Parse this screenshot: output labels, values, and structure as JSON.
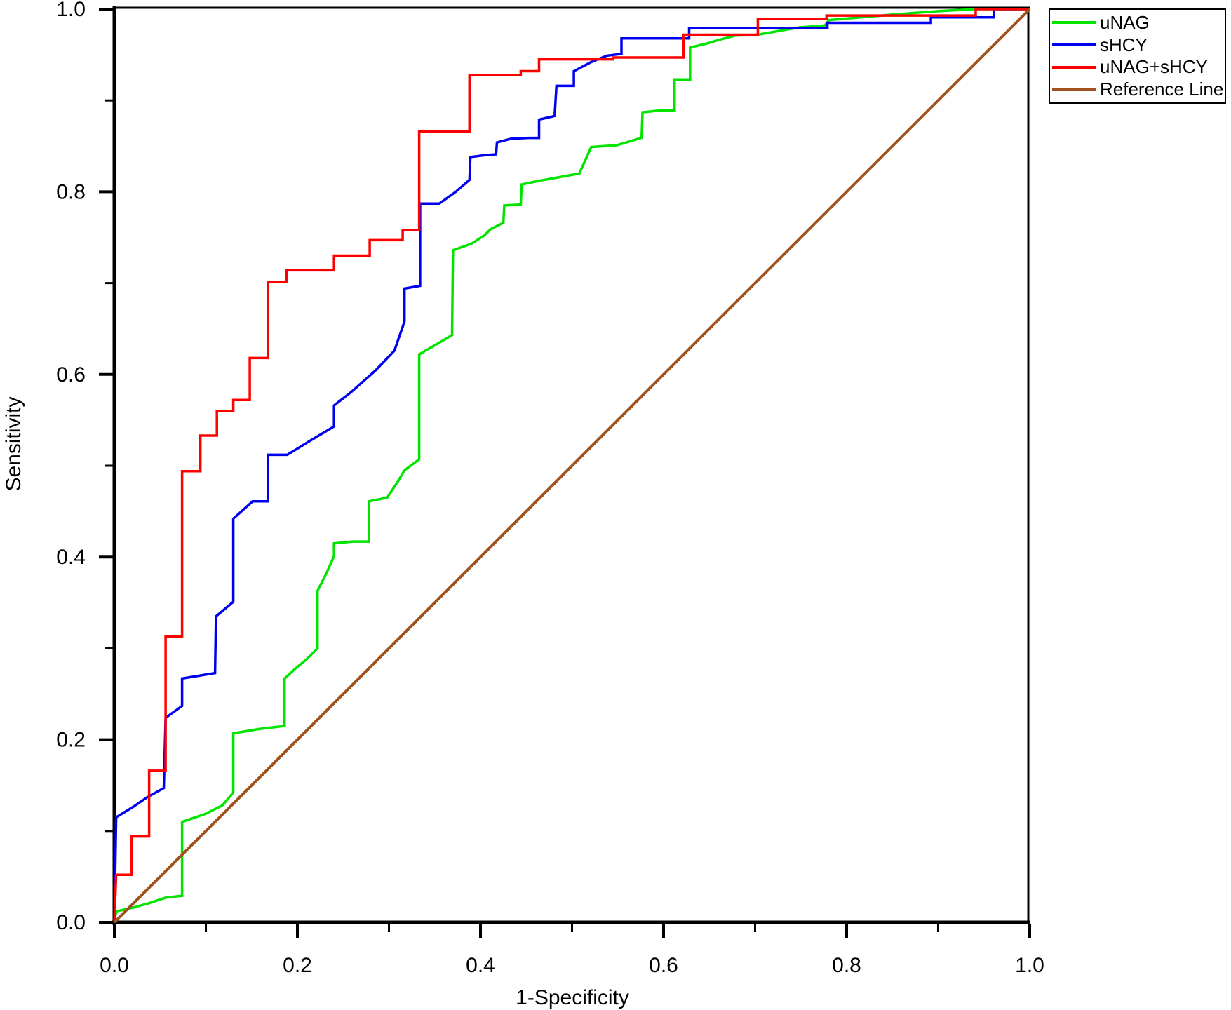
{
  "chart_data": {
    "type": "line",
    "subtype": "roc-curve",
    "title": "",
    "xlabel": "1-Specificity",
    "ylabel": "Sensitivity",
    "xlim": [
      0.0,
      1.0
    ],
    "ylim": [
      0.0,
      1.0
    ],
    "grid": false,
    "legend_position": "outside-top-right",
    "x_major_ticks": {
      "values": [
        0,
        0.2,
        0.4,
        0.6,
        0.8,
        1.0
      ],
      "labels": [
        "0.0",
        "0.2",
        "0.4",
        "0.6",
        "0.8",
        "1.0"
      ]
    },
    "x_minor_ticks": [
      0.1,
      0.3,
      0.5,
      0.7,
      0.9
    ],
    "y_major_ticks": {
      "values": [
        0,
        0.2,
        0.4,
        0.6,
        0.8,
        1.0
      ],
      "labels": [
        "0.0",
        "0.2",
        "0.4",
        "0.6",
        "0.8",
        "1.0"
      ]
    },
    "y_minor_ticks": [
      0.1,
      0.3,
      0.5,
      0.7,
      0.9
    ],
    "series": [
      {
        "name": "uNAG",
        "color": "#00E400",
        "width": 3.5,
        "points": [
          [
            0,
            0
          ],
          [
            0.002,
            0.012
          ],
          [
            0.02,
            0.016
          ],
          [
            0.038,
            0.021
          ],
          [
            0.056,
            0.027
          ],
          [
            0.073,
            0.029
          ],
          [
            0.074,
            0.029
          ],
          [
            0.074,
            0.11
          ],
          [
            0.1,
            0.119
          ],
          [
            0.118,
            0.128
          ],
          [
            0.13,
            0.142
          ],
          [
            0.13,
            0.207
          ],
          [
            0.16,
            0.212
          ],
          [
            0.186,
            0.215
          ],
          [
            0.186,
            0.267
          ],
          [
            0.198,
            0.278
          ],
          [
            0.21,
            0.288
          ],
          [
            0.222,
            0.3
          ],
          [
            0.222,
            0.363
          ],
          [
            0.232,
            0.383
          ],
          [
            0.24,
            0.401
          ],
          [
            0.24,
            0.415
          ],
          [
            0.26,
            0.417
          ],
          [
            0.278,
            0.417
          ],
          [
            0.278,
            0.461
          ],
          [
            0.298,
            0.465
          ],
          [
            0.31,
            0.483
          ],
          [
            0.317,
            0.495
          ],
          [
            0.333,
            0.507
          ],
          [
            0.333,
            0.622
          ],
          [
            0.352,
            0.633
          ],
          [
            0.369,
            0.643
          ],
          [
            0.37,
            0.736
          ],
          [
            0.39,
            0.743
          ],
          [
            0.404,
            0.752
          ],
          [
            0.411,
            0.759
          ],
          [
            0.425,
            0.766
          ],
          [
            0.426,
            0.785
          ],
          [
            0.444,
            0.786
          ],
          [
            0.445,
            0.808
          ],
          [
            0.464,
            0.812
          ],
          [
            0.486,
            0.816
          ],
          [
            0.508,
            0.82
          ],
          [
            0.521,
            0.849
          ],
          [
            0.549,
            0.851
          ],
          [
            0.576,
            0.859
          ],
          [
            0.577,
            0.887
          ],
          [
            0.596,
            0.889
          ],
          [
            0.612,
            0.889
          ],
          [
            0.612,
            0.923
          ],
          [
            0.629,
            0.923
          ],
          [
            0.629,
            0.958
          ],
          [
            0.646,
            0.962
          ],
          [
            0.663,
            0.967
          ],
          [
            0.678,
            0.971
          ],
          [
            0.703,
            0.972
          ],
          [
            0.748,
            0.98
          ],
          [
            0.776,
            0.982
          ],
          [
            0.781,
            0.988
          ],
          [
            0.85,
            0.994
          ],
          [
            0.903,
            0.998
          ],
          [
            0.941,
            1
          ],
          [
            1,
            1
          ]
        ]
      },
      {
        "name": "sHCY",
        "color": "#0000F0",
        "width": 3.5,
        "points": [
          [
            0,
            0
          ],
          [
            0.002,
            0.115
          ],
          [
            0.02,
            0.126
          ],
          [
            0.036,
            0.137
          ],
          [
            0.054,
            0.147
          ],
          [
            0.056,
            0.224
          ],
          [
            0.074,
            0.237
          ],
          [
            0.074,
            0.267
          ],
          [
            0.092,
            0.27
          ],
          [
            0.11,
            0.273
          ],
          [
            0.111,
            0.335
          ],
          [
            0.13,
            0.351
          ],
          [
            0.13,
            0.442
          ],
          [
            0.151,
            0.461
          ],
          [
            0.168,
            0.461
          ],
          [
            0.168,
            0.512
          ],
          [
            0.189,
            0.512
          ],
          [
            0.215,
            0.528
          ],
          [
            0.24,
            0.543
          ],
          [
            0.24,
            0.566
          ],
          [
            0.258,
            0.58
          ],
          [
            0.285,
            0.604
          ],
          [
            0.306,
            0.626
          ],
          [
            0.317,
            0.658
          ],
          [
            0.317,
            0.694
          ],
          [
            0.334,
            0.697
          ],
          [
            0.334,
            0.787
          ],
          [
            0.355,
            0.787
          ],
          [
            0.373,
            0.8
          ],
          [
            0.388,
            0.813
          ],
          [
            0.389,
            0.838
          ],
          [
            0.405,
            0.84
          ],
          [
            0.417,
            0.841
          ],
          [
            0.418,
            0.854
          ],
          [
            0.433,
            0.858
          ],
          [
            0.452,
            0.859
          ],
          [
            0.464,
            0.859
          ],
          [
            0.464,
            0.879
          ],
          [
            0.481,
            0.883
          ],
          [
            0.483,
            0.916
          ],
          [
            0.502,
            0.916
          ],
          [
            0.502,
            0.932
          ],
          [
            0.521,
            0.942
          ],
          [
            0.538,
            0.949
          ],
          [
            0.554,
            0.951
          ],
          [
            0.554,
            0.968
          ],
          [
            0.628,
            0.968
          ],
          [
            0.628,
            0.979
          ],
          [
            0.779,
            0.979
          ],
          [
            0.779,
            0.985
          ],
          [
            0.892,
            0.985
          ],
          [
            0.892,
            0.991
          ],
          [
            0.961,
            0.991
          ],
          [
            0.961,
            1
          ],
          [
            1,
            1
          ]
        ]
      },
      {
        "name": "uNAG+sHCY",
        "color": "#FF0000",
        "width": 3.5,
        "points": [
          [
            0,
            0
          ],
          [
            0.002,
            0.052
          ],
          [
            0.019,
            0.052
          ],
          [
            0.019,
            0.094
          ],
          [
            0.038,
            0.094
          ],
          [
            0.038,
            0.166
          ],
          [
            0.056,
            0.166
          ],
          [
            0.056,
            0.313
          ],
          [
            0.074,
            0.313
          ],
          [
            0.074,
            0.494
          ],
          [
            0.094,
            0.494
          ],
          [
            0.094,
            0.533
          ],
          [
            0.112,
            0.533
          ],
          [
            0.112,
            0.56
          ],
          [
            0.13,
            0.56
          ],
          [
            0.13,
            0.572
          ],
          [
            0.148,
            0.572
          ],
          [
            0.148,
            0.618
          ],
          [
            0.168,
            0.618
          ],
          [
            0.168,
            0.701
          ],
          [
            0.188,
            0.701
          ],
          [
            0.188,
            0.714
          ],
          [
            0.24,
            0.714
          ],
          [
            0.24,
            0.73
          ],
          [
            0.279,
            0.73
          ],
          [
            0.279,
            0.747
          ],
          [
            0.315,
            0.747
          ],
          [
            0.315,
            0.758
          ],
          [
            0.333,
            0.758
          ],
          [
            0.333,
            0.866
          ],
          [
            0.388,
            0.866
          ],
          [
            0.388,
            0.928
          ],
          [
            0.444,
            0.928
          ],
          [
            0.444,
            0.932
          ],
          [
            0.464,
            0.932
          ],
          [
            0.464,
            0.945
          ],
          [
            0.545,
            0.945
          ],
          [
            0.545,
            0.947
          ],
          [
            0.622,
            0.947
          ],
          [
            0.622,
            0.972
          ],
          [
            0.703,
            0.972
          ],
          [
            0.703,
            0.989
          ],
          [
            0.778,
            0.989
          ],
          [
            0.778,
            0.993
          ],
          [
            0.941,
            0.993
          ],
          [
            0.941,
            1
          ],
          [
            1,
            1
          ]
        ]
      },
      {
        "name": "Reference Line",
        "color": "#A0521D",
        "width": 4,
        "points": [
          [
            0,
            0
          ],
          [
            1,
            1
          ]
        ]
      }
    ]
  }
}
